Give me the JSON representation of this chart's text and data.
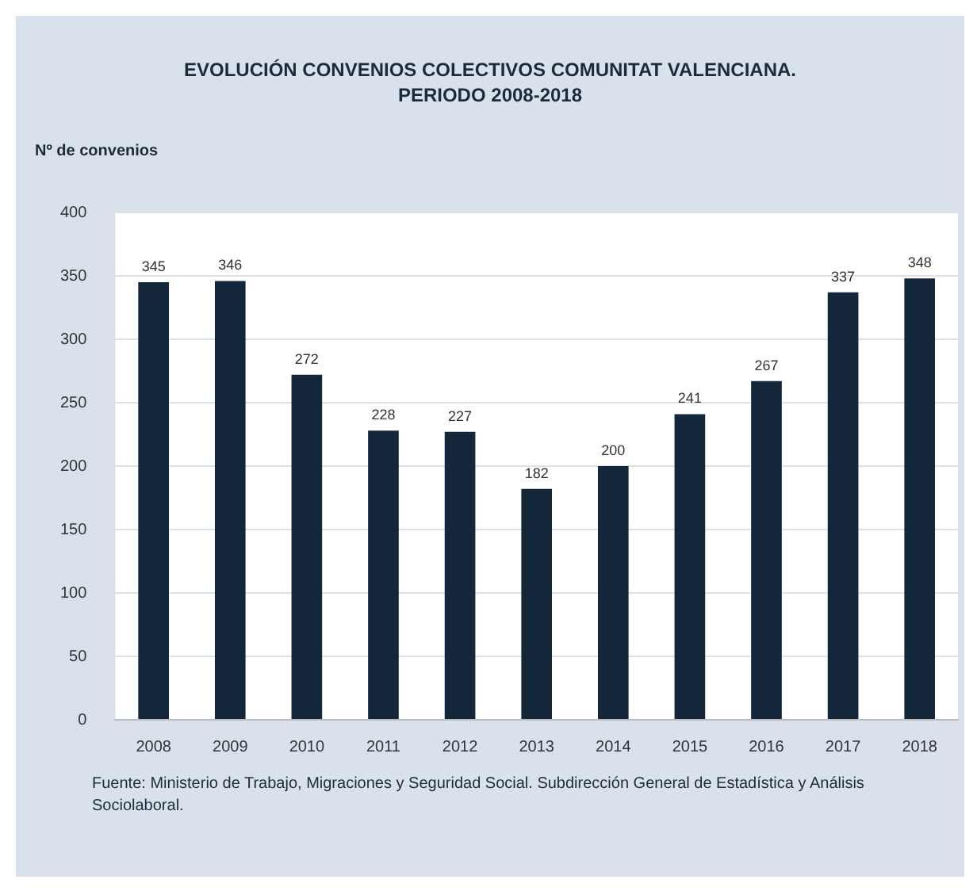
{
  "chart_data": {
    "type": "bar",
    "title": "EVOLUCIÓN CONVENIOS COLECTIVOS COMUNITAT VALENCIANA.\nPERIODO 2008-2018",
    "ylabel": "Nº de convenios",
    "categories": [
      "2008",
      "2009",
      "2010",
      "2011",
      "2012",
      "2013",
      "2014",
      "2015",
      "2016",
      "2017",
      "2018"
    ],
    "values": [
      345,
      346,
      272,
      228,
      227,
      182,
      200,
      241,
      267,
      337,
      348
    ],
    "color": "#13263a",
    "ylim": [
      0,
      400
    ],
    "yticks": [
      0,
      50,
      100,
      150,
      200,
      250,
      300,
      350,
      400
    ],
    "grid": "y",
    "data_labels": true,
    "legend": false,
    "annotations": [
      "Fuente: Ministerio de Trabajo, Migraciones y Seguridad Social. Subdirección General de Estadística y Análisis Sociolaboral."
    ]
  }
}
